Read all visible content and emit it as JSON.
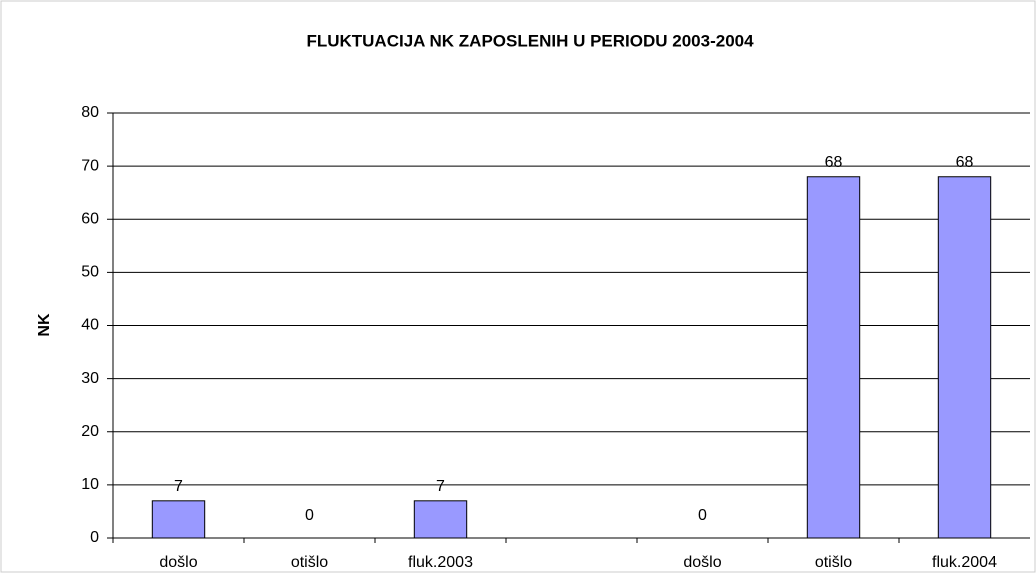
{
  "chart_data": {
    "type": "bar",
    "title": "FLUKTUACIJA NK ZAPOSLENIH U PERIODU 2003-2004",
    "y_label": "NK",
    "categories": [
      "došlo",
      "otišlo",
      "fluk.2003",
      null,
      "došlo",
      "otišlo",
      "fluk.2004"
    ],
    "values": [
      7,
      0,
      7,
      null,
      0,
      68,
      68
    ],
    "color": "#9999ff",
    "ylim": [
      0,
      80
    ],
    "yticks": [
      0,
      10,
      20,
      30,
      40,
      50,
      60,
      70,
      80
    ],
    "grid": true
  }
}
